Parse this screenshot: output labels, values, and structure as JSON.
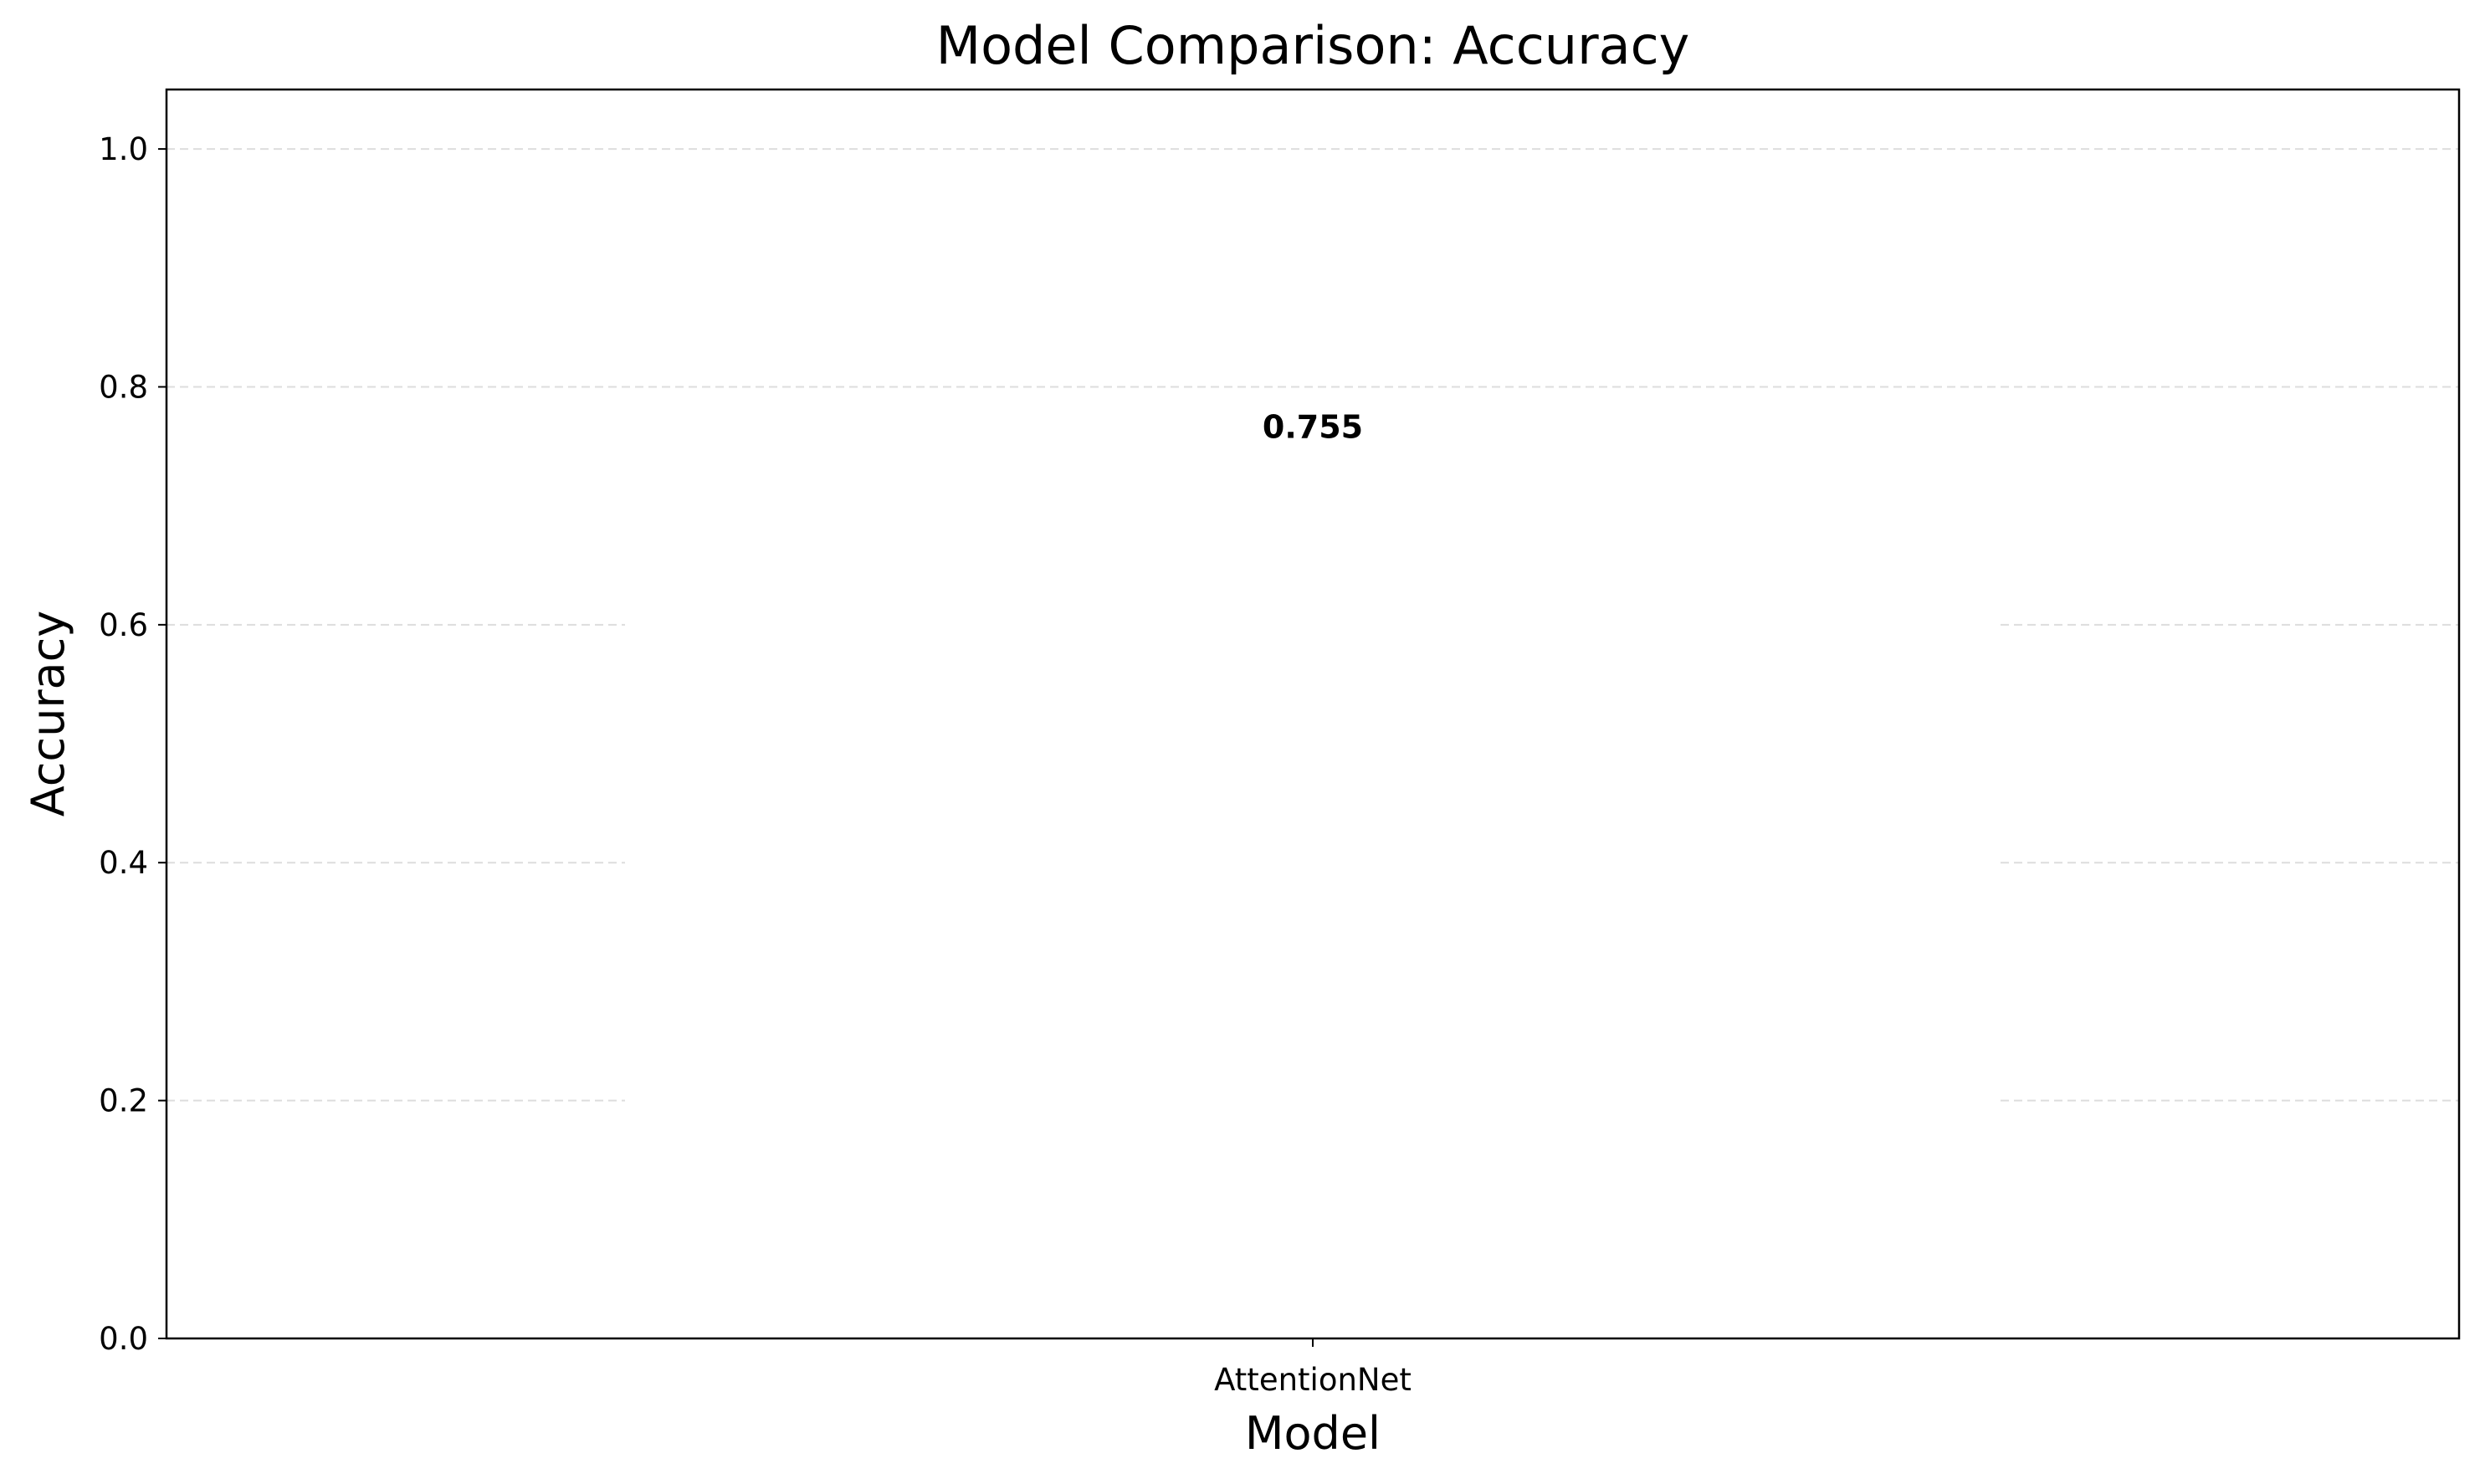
{
  "chart_data": {
    "type": "bar",
    "title": "Model Comparison: Accuracy",
    "xlabel": "Model",
    "ylabel": "Accuracy",
    "categories": [
      "AttentionNet"
    ],
    "series": [
      {
        "values": [
          0.755
        ]
      }
    ],
    "data_labels": [
      "0.755"
    ],
    "ylim": [
      0,
      1.05
    ],
    "yticks": [
      0.0,
      0.2,
      0.4,
      0.6,
      0.8,
      1.0
    ],
    "ytick_labels": [
      "0.0",
      "0.2",
      "0.4",
      "0.6",
      "0.8",
      "1.0"
    ],
    "grid": "horizontal dashed",
    "legend": "none",
    "colors": {
      "bar": "#ffffff",
      "grid": "#dddddd",
      "axis": "#000000",
      "text": "#000000"
    }
  }
}
